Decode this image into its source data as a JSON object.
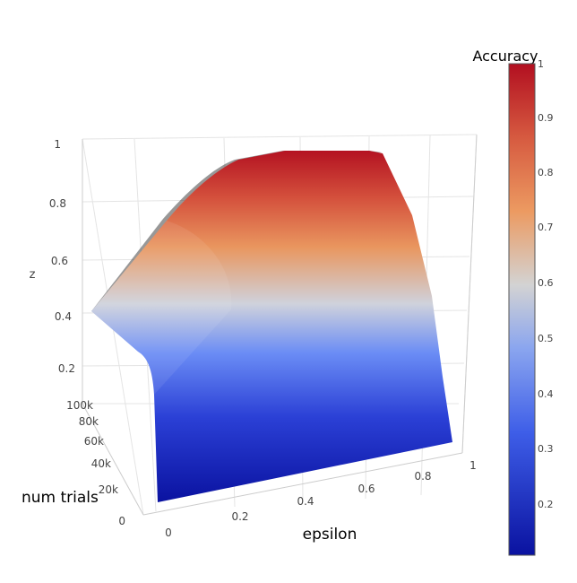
{
  "chart_data": {
    "type": "surface",
    "x_axis": {
      "label": "epsilon",
      "ticks": [
        "0",
        "0.2",
        "0.4",
        "0.6",
        "0.8",
        "1"
      ],
      "range": [
        0,
        1
      ]
    },
    "y_axis": {
      "label": "num trials",
      "ticks": [
        "0",
        "20k",
        "40k",
        "60k",
        "80k",
        "100k"
      ],
      "range": [
        0,
        100000
      ]
    },
    "z_axis": {
      "label": "z",
      "ticks": [
        "0.2",
        "0.4",
        "0.6",
        "0.8",
        "1"
      ],
      "range": [
        0.1,
        1
      ]
    },
    "colorbar": {
      "title": "Accuracy",
      "ticks": [
        "0.2",
        "0.3",
        "0.4",
        "0.5",
        "0.6",
        "0.7",
        "0.8",
        "0.9",
        "1"
      ],
      "range": [
        0.1,
        1
      ],
      "colors": [
        "#0a12a0",
        "#6a8cf5",
        "#d2d2d2",
        "#ec9a61",
        "#b20f20"
      ]
    },
    "approx_surface": {
      "description_points": [
        {
          "epsilon": 0,
          "num_trials": 100000,
          "z": 0.42
        },
        {
          "epsilon": 0.2,
          "num_trials": 100000,
          "z": 0.78
        },
        {
          "epsilon": 0.4,
          "num_trials": 100000,
          "z": 0.97
        },
        {
          "epsilon": 1,
          "num_trials": 100000,
          "z": 0.98
        },
        {
          "epsilon": 0,
          "num_trials": 0,
          "z": 0.12
        },
        {
          "epsilon": 1,
          "num_trials": 0,
          "z": 0.12
        }
      ]
    }
  }
}
